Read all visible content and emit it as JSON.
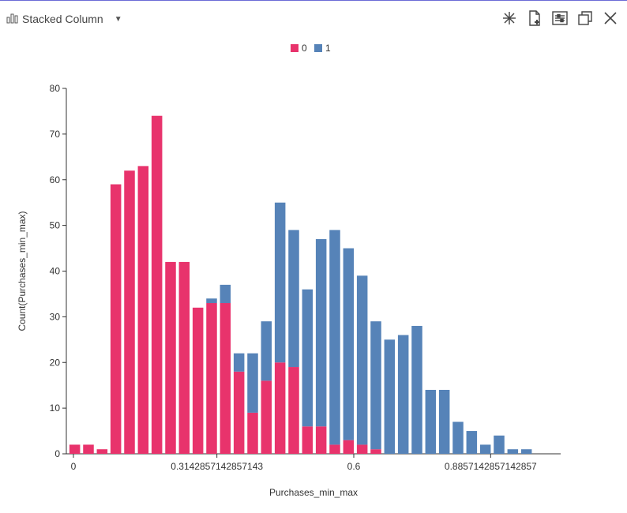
{
  "toolbar": {
    "chart_type_label": "Stacked Column",
    "chart_type_icon": "bar-chart-icon",
    "dropdown_icon": "caret-down-icon",
    "tools": [
      {
        "name": "sparkle-tool-button",
        "icon": "snowflake-icon"
      },
      {
        "name": "new-document-button",
        "icon": "file-plus-icon"
      },
      {
        "name": "settings-panel-button",
        "icon": "list-settings-icon"
      },
      {
        "name": "popout-button",
        "icon": "window-restore-icon"
      },
      {
        "name": "close-button",
        "icon": "close-icon"
      }
    ]
  },
  "colors": {
    "series_0": "#e8336c",
    "series_1": "#5683b8",
    "top_rule": "#6b6bd6"
  },
  "chart_data": {
    "type": "bar",
    "stacked": true,
    "xlabel": "Purchases_min_max",
    "ylabel": "Count(Purchases_min_max)",
    "ylim": [
      0,
      80
    ],
    "yticks": [
      0,
      10,
      20,
      30,
      40,
      50,
      60,
      70,
      80
    ],
    "xticks": [
      {
        "label": "0",
        "bin": 0
      },
      {
        "label": "0.3142857142857143",
        "bin": 11
      },
      {
        "label": "0.6",
        "bin": 21
      },
      {
        "label": "0.8857142857142857",
        "bin": 31
      }
    ],
    "legend_position": "top-center",
    "series": [
      {
        "name": "0",
        "values": [
          2,
          2,
          1,
          59,
          62,
          63,
          74,
          42,
          42,
          32,
          33,
          33,
          18,
          9,
          16,
          20,
          19,
          6,
          6,
          2,
          3,
          2,
          1,
          0,
          0,
          0,
          0,
          0,
          0,
          0,
          0,
          0,
          0,
          0,
          0,
          0
        ]
      },
      {
        "name": "1",
        "values": [
          0,
          0,
          0,
          0,
          0,
          0,
          0,
          0,
          0,
          0,
          1,
          4,
          4,
          13,
          13,
          35,
          30,
          30,
          41,
          47,
          42,
          37,
          28,
          25,
          26,
          28,
          14,
          14,
          7,
          5,
          2,
          4,
          1,
          1,
          0,
          0
        ]
      }
    ]
  }
}
